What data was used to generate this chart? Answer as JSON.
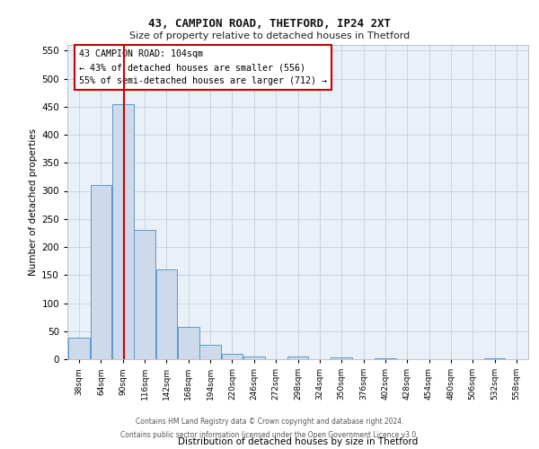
{
  "title1": "43, CAMPION ROAD, THETFORD, IP24 2XT",
  "title2": "Size of property relative to detached houses in Thetford",
  "xlabel": "Distribution of detached houses by size in Thetford",
  "ylabel": "Number of detached properties",
  "footer1": "Contains HM Land Registry data © Crown copyright and database right 2024.",
  "footer2": "Contains public sector information licensed under the Open Government Licence v3.0.",
  "property_size": 104,
  "bin_starts": [
    38,
    64,
    90,
    116,
    142,
    168,
    194,
    220,
    246,
    272,
    298,
    324,
    350,
    376,
    402,
    428,
    454,
    480,
    506,
    532,
    558
  ],
  "bin_width": 26,
  "bar_heights": [
    38,
    310,
    455,
    230,
    160,
    57,
    25,
    10,
    5,
    0,
    5,
    0,
    3,
    0,
    2,
    0,
    0,
    0,
    0,
    2,
    0
  ],
  "bar_color": "#ccdaec",
  "bar_edge_color": "#6098c8",
  "grid_color": "#c8d4e4",
  "red_line_color": "#cc0000",
  "annotation_line1": "43 CAMPION ROAD: 104sqm",
  "annotation_line2": "← 43% of detached houses are smaller (556)",
  "annotation_line3": "55% of semi-detached houses are larger (712) →",
  "ylim_max": 560,
  "yticks": [
    0,
    50,
    100,
    150,
    200,
    250,
    300,
    350,
    400,
    450,
    500,
    550
  ],
  "bg_color": "#eaf0f8"
}
